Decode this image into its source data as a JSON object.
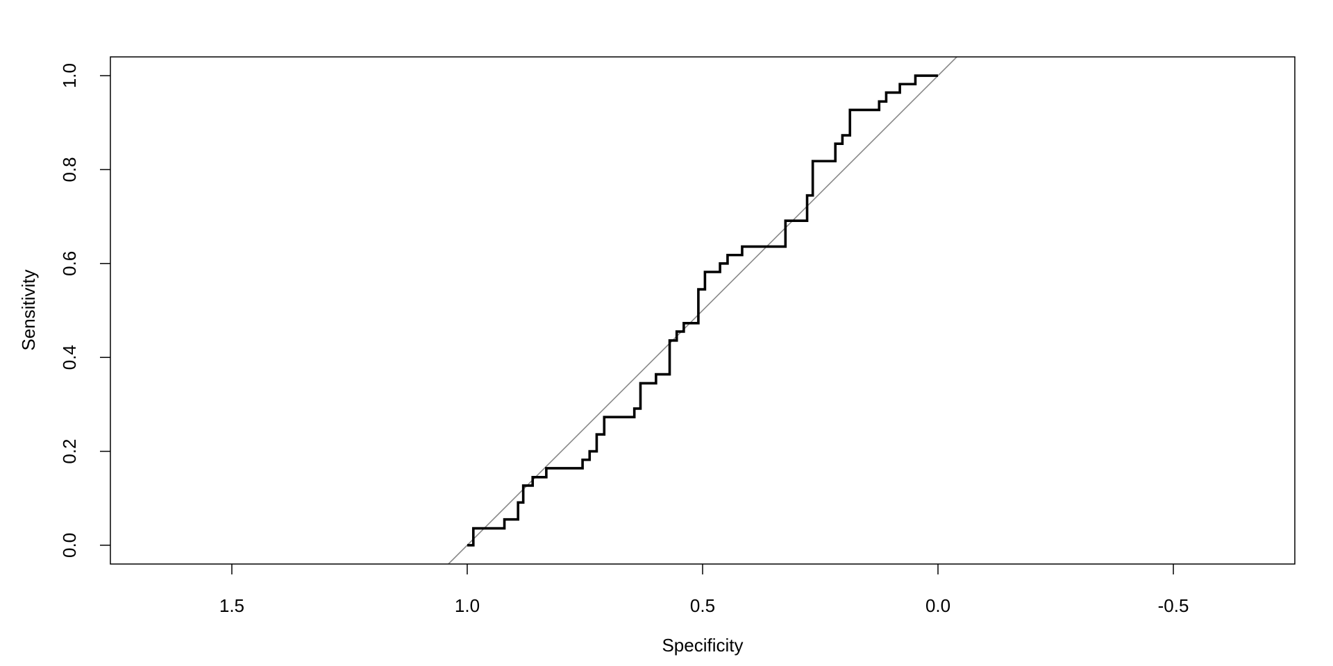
{
  "chart_data": {
    "type": "line",
    "xlabel": "Specificity",
    "ylabel": "Sensitivity",
    "x": [
      1.0,
      0.987,
      0.987,
      0.921,
      0.921,
      0.892,
      0.892,
      0.881,
      0.881,
      0.861,
      0.861,
      0.832,
      0.832,
      0.755,
      0.755,
      0.74,
      0.74,
      0.725,
      0.725,
      0.709,
      0.709,
      0.645,
      0.645,
      0.632,
      0.632,
      0.599,
      0.599,
      0.57,
      0.57,
      0.555,
      0.555,
      0.54,
      0.54,
      0.509,
      0.509,
      0.495,
      0.495,
      0.463,
      0.463,
      0.447,
      0.447,
      0.416,
      0.416,
      0.324,
      0.324,
      0.278,
      0.278,
      0.266,
      0.266,
      0.218,
      0.218,
      0.203,
      0.203,
      0.187,
      0.187,
      0.125,
      0.125,
      0.11,
      0.11,
      0.081,
      0.081,
      0.048,
      0.048,
      0.0
    ],
    "values": [
      0,
      0,
      0.036,
      0.036,
      0.055,
      0.055,
      0.091,
      0.091,
      0.127,
      0.127,
      0.145,
      0.145,
      0.164,
      0.164,
      0.182,
      0.182,
      0.2,
      0.2,
      0.236,
      0.236,
      0.273,
      0.273,
      0.291,
      0.291,
      0.345,
      0.345,
      0.364,
      0.364,
      0.436,
      0.436,
      0.455,
      0.455,
      0.473,
      0.473,
      0.545,
      0.545,
      0.582,
      0.582,
      0.6,
      0.6,
      0.618,
      0.618,
      0.636,
      0.636,
      0.691,
      0.691,
      0.745,
      0.745,
      0.818,
      0.818,
      0.855,
      0.855,
      0.873,
      0.873,
      0.927,
      0.927,
      0.945,
      0.945,
      0.964,
      0.964,
      0.982,
      0.982,
      1.0,
      1.0
    ],
    "color": "#000000",
    "diagonal": true,
    "diagonal_color": "#888888",
    "xlim": [
      1.758,
      -0.758
    ],
    "xticks": [
      1.5,
      {
        "value": 1,
        "label": "1.0"
      },
      0.5,
      {
        "value": 0,
        "label": "0.0"
      },
      -0.5
    ],
    "ylim": [
      -0.04,
      1.04
    ],
    "yticks": [
      {
        "value": 0,
        "label": "0.0"
      },
      0.2,
      0.4,
      0.6,
      0.8,
      {
        "value": 1,
        "label": "1.0"
      }
    ]
  }
}
